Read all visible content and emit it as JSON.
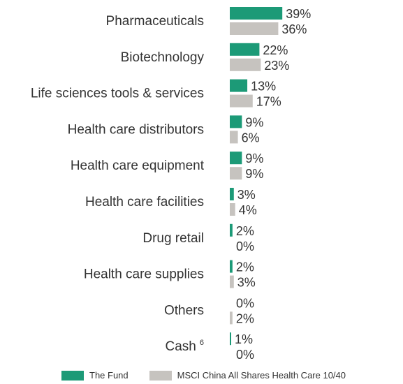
{
  "chart_data": {
    "type": "bar",
    "orientation": "horizontal",
    "categories": [
      "Pharmaceuticals",
      "Biotechnology",
      "Life sciences tools & services",
      "Health care distributors",
      "Health care equipment",
      "Health care facilities",
      "Drug retail",
      "Health care supplies",
      "Others",
      "Cash"
    ],
    "category_footnotes": {
      "Cash": "6"
    },
    "series": [
      {
        "name": "The Fund",
        "color": "#1c9a77",
        "values": [
          39,
          22,
          13,
          9,
          9,
          3,
          2,
          2,
          0,
          1
        ],
        "labels": [
          "39%",
          "22%",
          "13%",
          "9%",
          "9%",
          "3%",
          "2%",
          "2%",
          "0%",
          "1%"
        ]
      },
      {
        "name": "MSCI China All Shares Health Care 10/40",
        "color": "#c6c3bf",
        "values": [
          36,
          23,
          17,
          6,
          9,
          4,
          0,
          3,
          2,
          0
        ],
        "labels": [
          "36%",
          "23%",
          "17%",
          "6%",
          "9%",
          "4%",
          "0%",
          "3%",
          "2%",
          "0%"
        ]
      }
    ],
    "title": "",
    "xlabel": "",
    "ylabel": "",
    "grid": false,
    "legend_position": "bottom"
  }
}
